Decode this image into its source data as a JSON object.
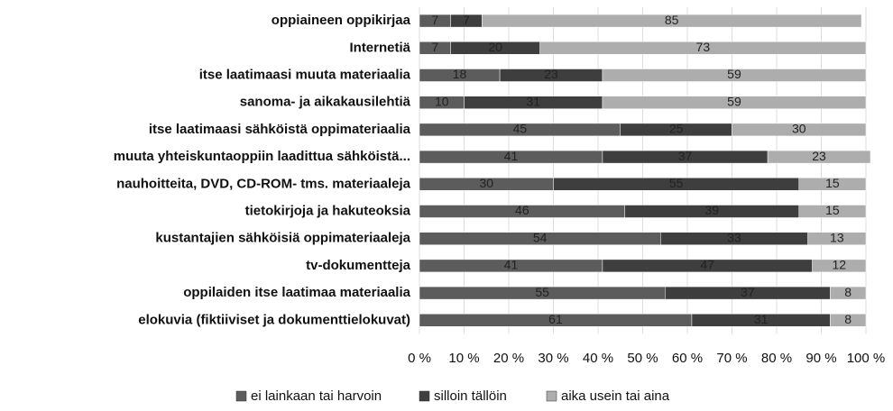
{
  "chart_data": {
    "type": "stacked-bar-horizontal",
    "categories": [
      "oppiaineen oppikirjaa",
      "Internetiä",
      "itse laatimaasi muuta materiaalia",
      "sanoma- ja aikakausilehtiä",
      "itse laatimaasi sähköistä oppimateriaalia",
      "muuta yhteiskuntaoppiin laadittua sähköistä...",
      "nauhoitteita, DVD, CD-ROM- tms. materiaaleja",
      "tietokirjoja ja hakuteoksia",
      "kustantajien sähköisiä oppimateriaaleja",
      "tv-dokumentteja",
      "oppilaiden itse laatimaa materiaalia",
      "elokuvia (fiktiiviset ja dokumenttielokuvat)"
    ],
    "series": [
      {
        "name": "ei lainkaan tai harvoin",
        "color": "#5c5c5c",
        "values": [
          7,
          7,
          18,
          10,
          45,
          41,
          30,
          46,
          54,
          41,
          55,
          61
        ]
      },
      {
        "name": "silloin tällöin",
        "color": "#3e3e3e",
        "values": [
          7,
          20,
          23,
          31,
          25,
          37,
          55,
          39,
          33,
          47,
          37,
          31
        ]
      },
      {
        "name": "aika usein tai aina",
        "color": "#adadad",
        "values": [
          85,
          73,
          59,
          59,
          30,
          23,
          15,
          15,
          13,
          12,
          8,
          8
        ]
      }
    ],
    "xlim": [
      0,
      100
    ],
    "xticks": [
      {
        "value": 0,
        "label": "0 %"
      },
      {
        "value": 10,
        "label": "10 %"
      },
      {
        "value": 20,
        "label": "20 %"
      },
      {
        "value": 30,
        "label": "30 %"
      },
      {
        "value": 40,
        "label": "40 %"
      },
      {
        "value": 50,
        "label": "50 %"
      },
      {
        "value": 60,
        "label": "60 %"
      },
      {
        "value": 70,
        "label": "70 %"
      },
      {
        "value": 80,
        "label": "80 %"
      },
      {
        "value": 90,
        "label": "90 %"
      },
      {
        "value": 100,
        "label": "100 %"
      }
    ],
    "grid": true,
    "legend": "bottom"
  }
}
